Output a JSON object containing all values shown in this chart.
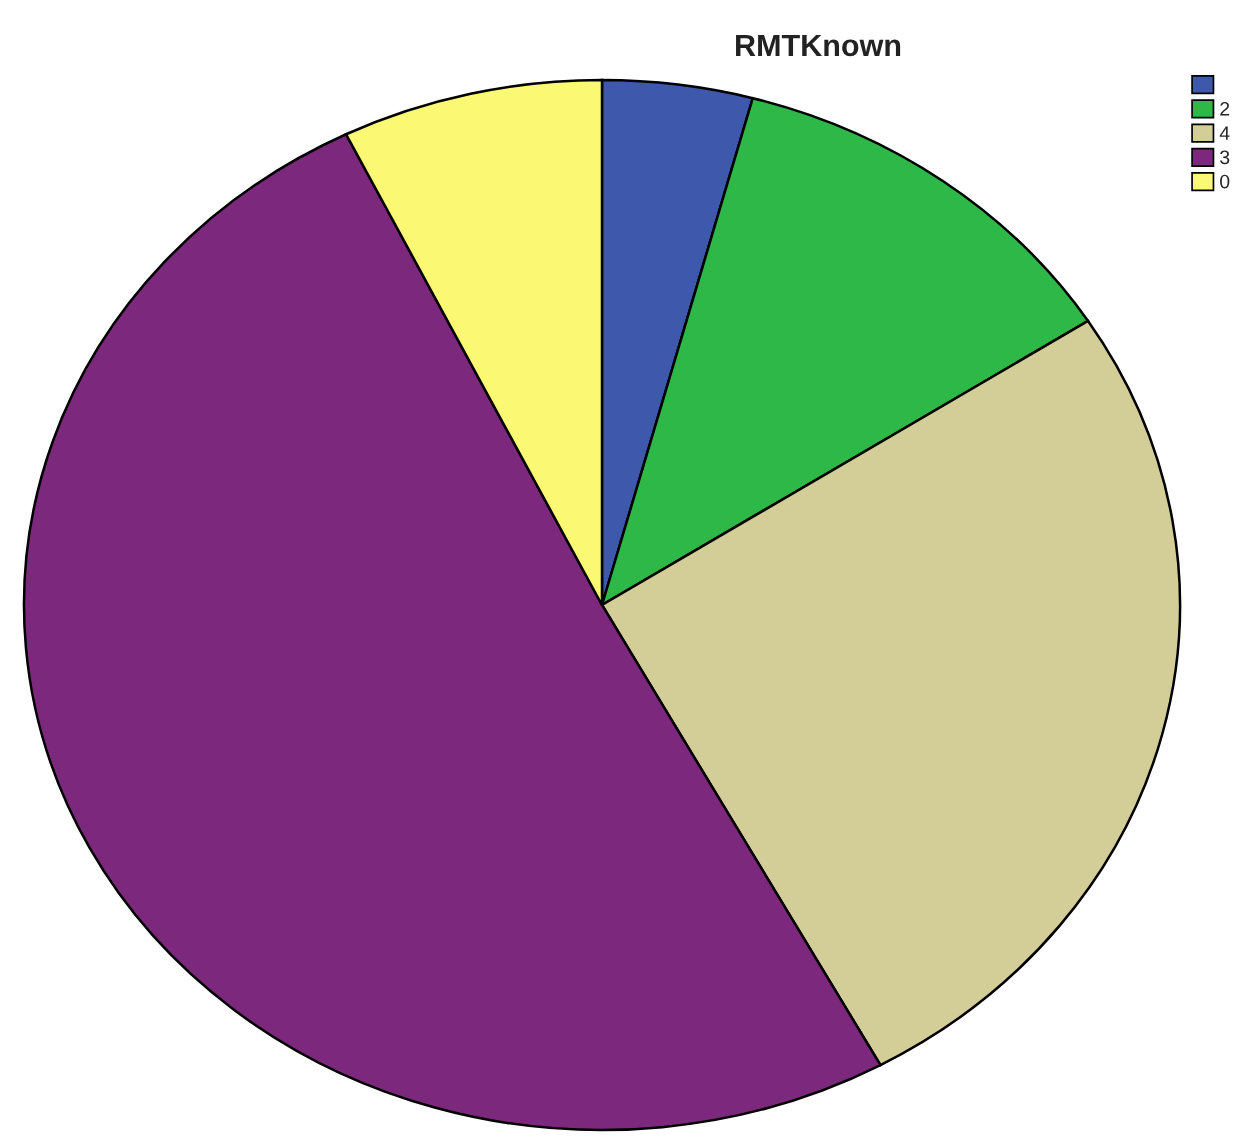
{
  "chart_data": {
    "type": "pie",
    "title": "RMTKnown",
    "categories": [
      null,
      "2",
      "4",
      "3",
      "0"
    ],
    "values": [
      4.2,
      11.7,
      26.1,
      50.7,
      7.3
    ],
    "colors": [
      "#3e58ac",
      "#2eb848",
      "#d3ce97",
      "#7c287d",
      "#fbf873"
    ],
    "legend": "top right"
  }
}
